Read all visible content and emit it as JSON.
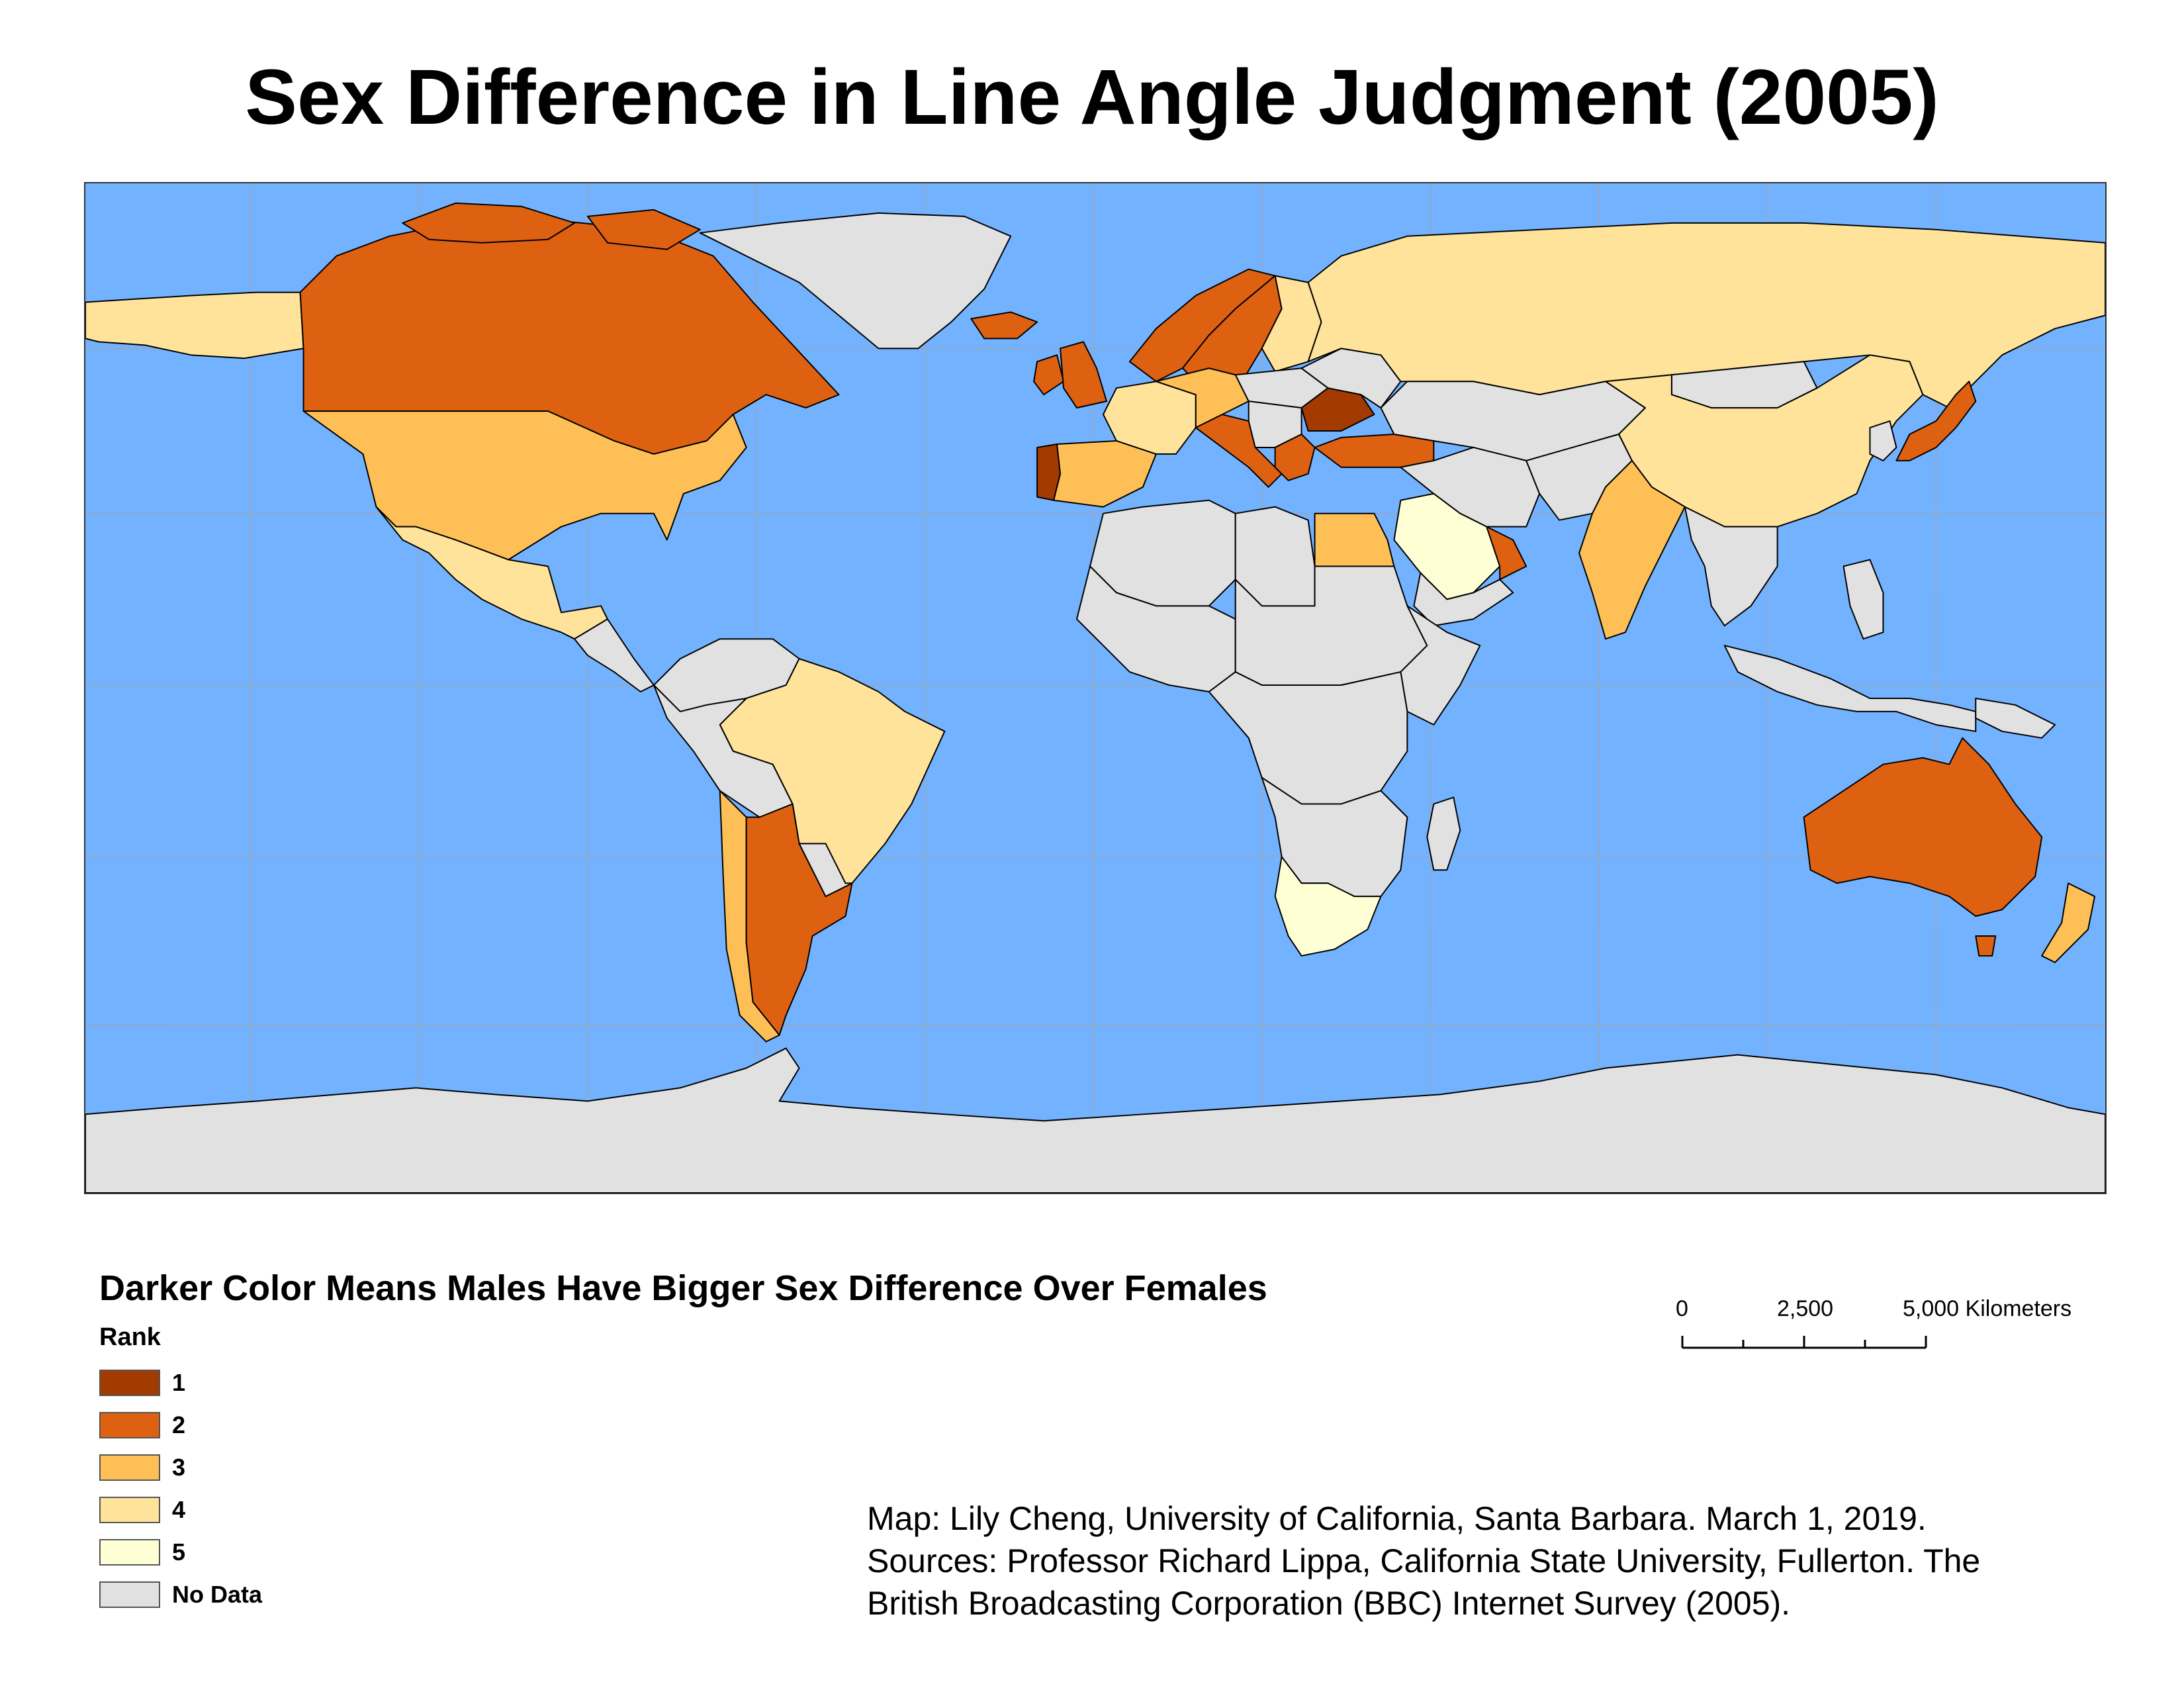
{
  "map": {
    "title": "Sex Difference in Line Angle Judgment (2005)",
    "colors": {
      "ocean": "#73b2ff",
      "no_data": "#e1e1e1",
      "rank_1": "#a33a00",
      "rank_2": "#de6112",
      "rank_3": "#fec056",
      "rank_4": "#ffe39a",
      "rank_5": "#ffffd6",
      "graticule": "#9aa8b8",
      "border": "#000000"
    },
    "regions": [
      {
        "name": "Canada",
        "rank": 2
      },
      {
        "name": "United States",
        "rank": 3
      },
      {
        "name": "Alaska",
        "rank": 4
      },
      {
        "name": "Mexico",
        "rank": 4
      },
      {
        "name": "Greenland",
        "rank": "No Data"
      },
      {
        "name": "Iceland",
        "rank": 2
      },
      {
        "name": "United Kingdom",
        "rank": 2
      },
      {
        "name": "Ireland",
        "rank": 2
      },
      {
        "name": "Norway",
        "rank": 2
      },
      {
        "name": "Sweden",
        "rank": 2
      },
      {
        "name": "Finland",
        "rank": 4
      },
      {
        "name": "Portugal",
        "rank": 1
      },
      {
        "name": "Spain",
        "rank": 3
      },
      {
        "name": "France",
        "rank": 4
      },
      {
        "name": "Germany",
        "rank": 3
      },
      {
        "name": "Italy",
        "rank": 2
      },
      {
        "name": "Romania",
        "rank": 1
      },
      {
        "name": "Greece",
        "rank": 2
      },
      {
        "name": "Turkey",
        "rank": 2
      },
      {
        "name": "Russia",
        "rank": 4
      },
      {
        "name": "China",
        "rank": 4
      },
      {
        "name": "Japan",
        "rank": 2
      },
      {
        "name": "India",
        "rank": 3
      },
      {
        "name": "Egypt",
        "rank": 3
      },
      {
        "name": "Saudi Arabia",
        "rank": 5
      },
      {
        "name": "United Arab Emirates",
        "rank": 2
      },
      {
        "name": "Brazil",
        "rank": 4
      },
      {
        "name": "Argentina",
        "rank": 2
      },
      {
        "name": "Chile",
        "rank": 3
      },
      {
        "name": "South Africa",
        "rank": 5
      },
      {
        "name": "Australia",
        "rank": 2
      },
      {
        "name": "New Zealand",
        "rank": 3
      },
      {
        "name": "Antarctica",
        "rank": "No Data"
      }
    ]
  },
  "legend": {
    "heading": "Darker Color Means Males Have Bigger Sex Difference Over Females",
    "title": "Rank",
    "items": [
      {
        "label": "1",
        "color": "#a33a00"
      },
      {
        "label": "2",
        "color": "#de6112"
      },
      {
        "label": "3",
        "color": "#fec056"
      },
      {
        "label": "4",
        "color": "#ffe39a"
      },
      {
        "label": "5",
        "color": "#ffffd6"
      },
      {
        "label": "No Data",
        "color": "#e1e1e1"
      }
    ]
  },
  "scale_bar": {
    "labels": [
      "0",
      "2,500",
      "5,000 Kilometers"
    ]
  },
  "credits": {
    "line1": "Map: Lily Cheng, University of California, Santa Barbara. March 1, 2019.",
    "line2": "Sources: Professor Richard Lippa, California State University, Fullerton. The",
    "line3": "British Broadcasting Corporation (BBC) Internet Survey (2005)."
  }
}
